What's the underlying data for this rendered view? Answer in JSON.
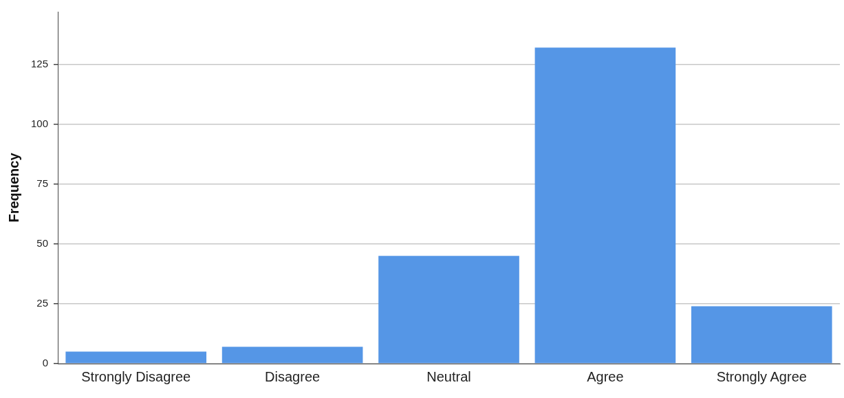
{
  "chart_data": {
    "type": "bar",
    "ylabel": "Frequency",
    "categories": [
      "Strongly Disagree",
      "Disagree",
      "Neutral",
      "Agree",
      "Strongly Agree"
    ],
    "values": [
      5,
      7,
      45,
      132,
      24
    ],
    "color": "#5596e6",
    "ylim": [
      0,
      147
    ],
    "yticks": [
      0,
      25,
      50,
      75,
      100,
      125
    ],
    "grid": "y",
    "legend": false
  }
}
